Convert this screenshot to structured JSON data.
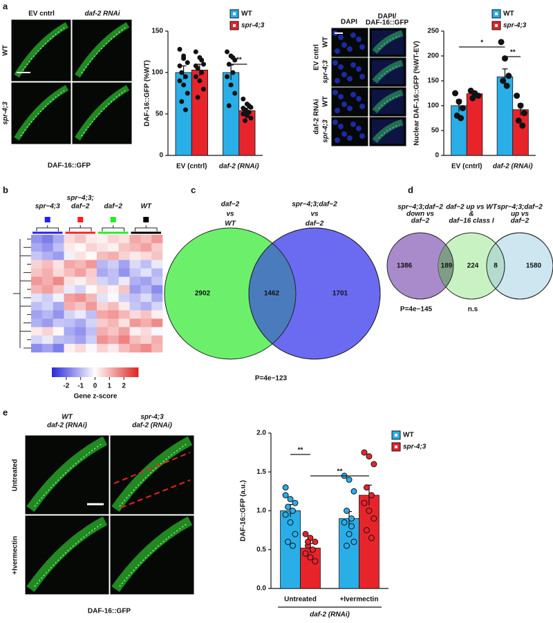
{
  "panel_labels": [
    "a",
    "b",
    "c",
    "d",
    "e"
  ],
  "panel_a": {
    "columns": [
      "EV cntrl",
      "daf-2 RNAi"
    ],
    "rows": [
      "WT",
      "spr-4;3"
    ],
    "caption": "DAF-16::GFP"
  },
  "panel_a_nuclear": {
    "columns": [
      [
        "DAPI"
      ],
      [
        "DAPI/",
        "DAF-16::GFP"
      ]
    ],
    "groups": [
      "EV cntrl",
      "daf-2 RNAi"
    ],
    "rows": [
      "WT",
      "spr-4;3",
      "WT",
      "spr-4;3"
    ]
  },
  "heatmap": {
    "groups": [
      [
        "spr−4;3"
      ],
      [
        "spr−4;3;",
        "daf−2"
      ],
      [
        "daf−2"
      ],
      [
        "WT"
      ]
    ],
    "group_colors": [
      "#1f1fff",
      "#ff1f1f",
      "#22ee22",
      "#000000"
    ],
    "zlim": [
      -3,
      3
    ],
    "zticks": [
      -2,
      -1,
      0,
      1,
      2
    ],
    "colorbar_label": "Gene z-score",
    "values": [
      [
        -1.5,
        -1.8,
        -1.2,
        0.5,
        0.8,
        0.3,
        0.2,
        0.6,
        0.4,
        1.2,
        0.9,
        1.4
      ],
      [
        -1.2,
        -1.5,
        -0.9,
        0.3,
        0.1,
        0.6,
        0.4,
        0.2,
        0.8,
        1.0,
        1.3,
        0.7
      ],
      [
        -0.8,
        -1.1,
        -1.4,
        -0.2,
        0.4,
        0.1,
        0.9,
        1.1,
        0.6,
        0.3,
        0.5,
        0.8
      ],
      [
        0.6,
        0.9,
        0.4,
        1.2,
        1.0,
        1.4,
        -1.0,
        -0.7,
        -1.3,
        -0.5,
        -0.9,
        -0.3
      ],
      [
        0.8,
        1.1,
        0.5,
        0.9,
        1.3,
        0.7,
        -1.2,
        -0.9,
        -1.5,
        -0.8,
        -0.4,
        -1.0
      ],
      [
        1.4,
        1.1,
        1.6,
        0.4,
        0.2,
        0.6,
        -0.6,
        -0.9,
        -0.3,
        -1.1,
        -1.3,
        -0.8
      ],
      [
        1.0,
        1.3,
        0.8,
        -0.3,
        -0.6,
        0.1,
        0.5,
        0.2,
        0.8,
        -1.4,
        -1.0,
        -1.6
      ],
      [
        -0.4,
        -0.7,
        -0.2,
        1.3,
        1.5,
        1.0,
        -0.4,
        -0.1,
        -0.7,
        -0.9,
        -0.5,
        -1.2
      ],
      [
        -0.9,
        -0.6,
        -1.2,
        1.1,
        0.8,
        1.4,
        0.6,
        0.9,
        0.3,
        -0.8,
        -1.1,
        -0.6
      ],
      [
        -1.3,
        -1.0,
        -1.5,
        -0.6,
        -0.3,
        -0.9,
        1.2,
        1.4,
        1.0,
        0.5,
        0.8,
        0.2
      ],
      [
        -1.1,
        -1.4,
        -0.8,
        -0.9,
        -1.2,
        -0.6,
        0.7,
        1.0,
        0.4,
        1.4,
        1.1,
        1.6
      ],
      [
        0.3,
        0.6,
        0.1,
        -1.2,
        -1.5,
        -0.9,
        1.1,
        0.8,
        1.3,
        0.2,
        0.5,
        -0.1
      ],
      [
        -0.6,
        -0.3,
        -0.9,
        -1.0,
        -1.3,
        -0.7,
        1.5,
        1.2,
        1.7,
        0.9,
        0.6,
        1.1
      ],
      [
        -1.6,
        -1.3,
        -1.8,
        0.2,
        0.5,
        -0.1,
        0.6,
        0.3,
        0.9,
        1.3,
        1.6,
        1.0
      ]
    ]
  },
  "venn_c": {
    "sets": [
      [
        "daf−2",
        "vs",
        "WT"
      ],
      [
        "spr−4;3;daf−2",
        "vs",
        "daf−2"
      ]
    ],
    "counts": [
      2902,
      1462,
      1701
    ],
    "p_value": "P=4e−123"
  },
  "venn_d": {
    "sets": [
      [
        "spr−4;3;daf−2",
        "down vs",
        "daf−2"
      ],
      [
        "daf−2 up vs WT",
        "&",
        "daf−16 class I"
      ],
      [
        "spr−4;3;daf−2",
        "up vs",
        "daf−2"
      ]
    ],
    "counts": [
      1386,
      189,
      224,
      8,
      1580
    ],
    "annotations": [
      "P=4e−145",
      "n.s"
    ]
  },
  "panel_e": {
    "columns": [
      [
        "WT",
        "daf-2 (RNAi)"
      ],
      [
        "spr-4;3",
        "daf-2 (RNAi)"
      ]
    ],
    "rows": [
      "Untreated",
      "+Ivermectin"
    ],
    "caption": "DAF-16::GFP"
  },
  "chart_data": [
    {
      "type": "bar",
      "ylabel": "DAF-16::GFP (%WT)",
      "categories": [
        "EV (cntrl)",
        "daf-2 (RNAi)"
      ],
      "ylim": [
        0,
        150
      ],
      "yticks": [
        0,
        50,
        100,
        150
      ],
      "significance": [
        "**"
      ],
      "series": [
        {
          "name": "WT",
          "color": "#29aee8",
          "values": [
            100,
            100
          ],
          "errors": [
            8,
            9
          ],
          "points": [
            [
              128,
              120,
              112,
              100,
              95,
              90,
              85,
              75,
              65,
              55,
              108,
              117
            ],
            [
              125,
              120,
              115,
              110,
              100,
              95,
              85,
              75,
              60,
              118
            ]
          ]
        },
        {
          "name": "spr-4;3",
          "color": "#e8242b",
          "values": [
            103,
            54
          ],
          "errors": [
            7,
            3
          ],
          "points": [
            [
              125,
              118,
              110,
              105,
              100,
              95,
              90,
              80,
              70,
              115,
              108
            ],
            [
              68,
              62,
              58,
              55,
              52,
              50,
              48,
              45,
              42,
              60,
              57,
              53
            ]
          ]
        }
      ]
    },
    {
      "type": "bar",
      "ylabel": "Nuclear DAF-16::GFP (%WT-EV)",
      "categories": [
        "EV (cntrl)",
        "daf-2 (RNAi)"
      ],
      "ylim": [
        0,
        250
      ],
      "yticks": [
        0,
        50,
        100,
        150,
        200,
        250
      ],
      "significance": [
        "*",
        "**"
      ],
      "series": [
        {
          "name": "WT",
          "color": "#29aee8",
          "values": [
            100,
            158
          ],
          "errors": [
            12,
            16
          ],
          "points": [
            [
              125,
              108,
              95,
              80,
              75
            ],
            [
              228,
              195,
              160,
              150,
              140
            ]
          ]
        },
        {
          "name": "spr-4;3",
          "color": "#e8242b",
          "values": [
            124,
            92
          ],
          "errors": [
            5,
            12
          ],
          "points": [
            [
              130,
              125,
              120,
              115
            ],
            [
              120,
              100,
              85,
              70,
              60
            ]
          ]
        }
      ]
    },
    {
      "type": "bar",
      "ylabel": "DAF-16::GFP (a.u.)",
      "xlabel": "daf-2 (RNAi)",
      "categories": [
        "Untreated",
        "+Ivermectin"
      ],
      "ylim": [
        0,
        2
      ],
      "yticks": [
        {
          "value": 0,
          "label": "0.0"
        },
        0.5,
        {
          "value": 1,
          "label": "1.0"
        },
        1.5,
        {
          "value": 2,
          "label": "2.0"
        }
      ],
      "significance": [
        "**",
        "**"
      ],
      "series": [
        {
          "name": "WT",
          "color": "#29aee8",
          "values": [
            1.0,
            0.9
          ],
          "errors": [
            0.08,
            0.09
          ],
          "points": [
            [
              1.3,
              1.15,
              1.1,
              1.05,
              1.0,
              0.95,
              0.85,
              0.7,
              0.6,
              0.55,
              1.2
            ],
            [
              1.45,
              1.4,
              1.25,
              1.0,
              0.9,
              0.85,
              0.7,
              0.6,
              0.55,
              0.8
            ]
          ]
        },
        {
          "name": "spr-4;3",
          "color": "#e8242b",
          "values": [
            0.52,
            1.2
          ],
          "errors": [
            0.06,
            0.13
          ],
          "points": [
            [
              0.7,
              0.65,
              0.6,
              0.55,
              0.5,
              0.45,
              0.4,
              0.35,
              0.6
            ],
            [
              1.75,
              1.7,
              1.6,
              1.3,
              1.2,
              1.1,
              1.0,
              0.9,
              0.75,
              0.65
            ]
          ]
        }
      ]
    }
  ]
}
